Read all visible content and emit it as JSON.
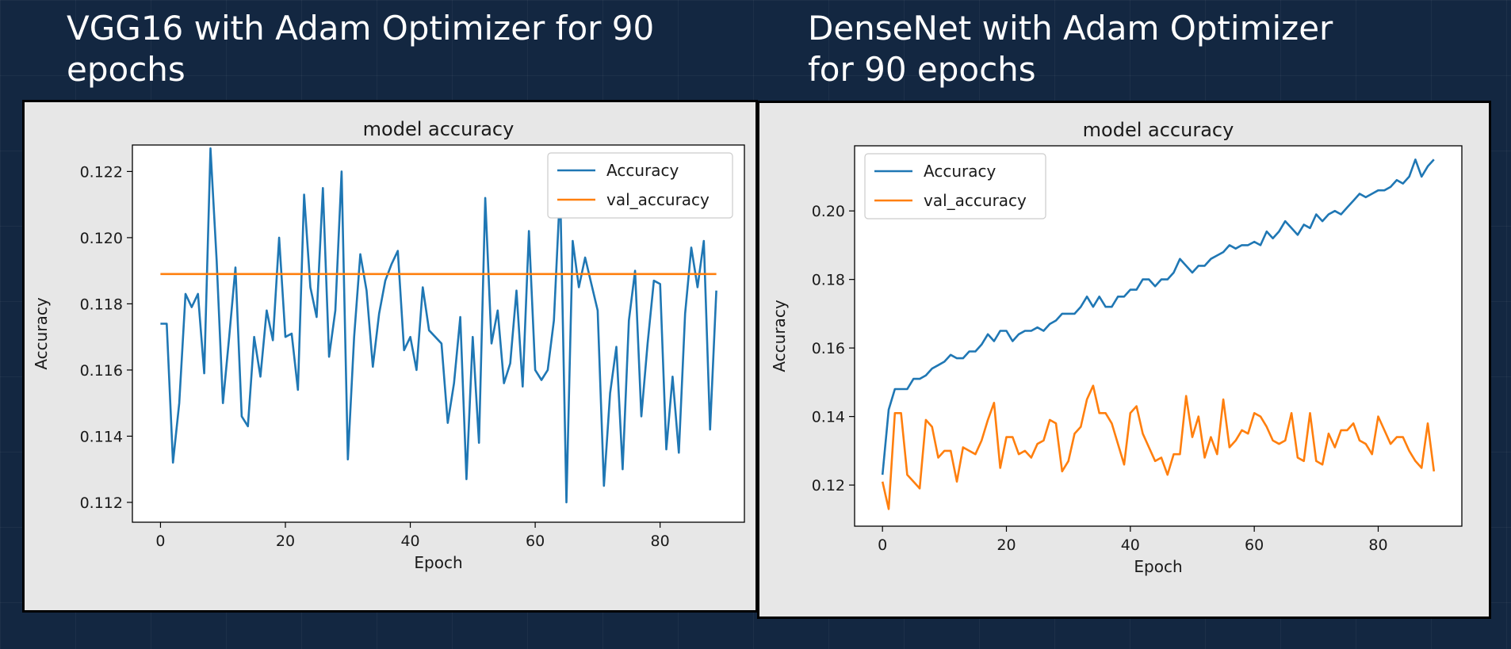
{
  "slide": {
    "left_title": "VGG16 with Adam Optimizer for 90 epochs",
    "right_title": "DenseNet with Adam Optimizer for 90 epochs"
  },
  "colors": {
    "background": "#132741",
    "accuracy": "#1f77b4",
    "val_accuracy": "#ff7f0e"
  },
  "chart_data": [
    {
      "type": "line",
      "title": "model accuracy",
      "xlabel": "Epoch",
      "ylabel": "Accuracy",
      "xlim": [
        -4.5,
        93.5
      ],
      "ylim": [
        0.1114,
        0.1228
      ],
      "xticks": [
        0,
        20,
        40,
        60,
        80
      ],
      "yticks": [
        0.112,
        0.114,
        0.116,
        0.118,
        0.12,
        0.122
      ],
      "ytick_labels": [
        "0.112",
        "0.114",
        "0.116",
        "0.118",
        "0.120",
        "0.122"
      ],
      "legend": "top-right",
      "series": [
        {
          "name": "Accuracy",
          "color": "#1f77b4",
          "x": [
            0,
            1,
            2,
            3,
            4,
            5,
            6,
            7,
            8,
            9,
            10,
            11,
            12,
            13,
            14,
            15,
            16,
            17,
            18,
            19,
            20,
            21,
            22,
            23,
            24,
            25,
            26,
            27,
            28,
            29,
            30,
            31,
            32,
            33,
            34,
            35,
            36,
            37,
            38,
            39,
            40,
            41,
            42,
            43,
            44,
            45,
            46,
            47,
            48,
            49,
            50,
            51,
            52,
            53,
            54,
            55,
            56,
            57,
            58,
            59,
            60,
            61,
            62,
            63,
            64,
            65,
            66,
            67,
            68,
            69,
            70,
            71,
            72,
            73,
            74,
            75,
            76,
            77,
            78,
            79,
            80,
            81,
            82,
            83,
            84,
            85,
            86,
            87,
            88,
            89
          ],
          "values": [
            0.1174,
            0.1174,
            0.1132,
            0.115,
            0.1183,
            0.1179,
            0.1183,
            0.1159,
            0.1227,
            0.1193,
            0.115,
            0.117,
            0.1191,
            0.1146,
            0.1143,
            0.117,
            0.1158,
            0.1178,
            0.1169,
            0.12,
            0.117,
            0.1171,
            0.1154,
            0.1213,
            0.1185,
            0.1176,
            0.1215,
            0.1164,
            0.1178,
            0.122,
            0.1133,
            0.117,
            0.1195,
            0.1184,
            0.1161,
            0.1177,
            0.1187,
            0.1192,
            0.1196,
            0.1166,
            0.117,
            0.116,
            0.1185,
            0.1172,
            0.117,
            0.1168,
            0.1144,
            0.1156,
            0.1176,
            0.1127,
            0.117,
            0.1138,
            0.1212,
            0.1168,
            0.1178,
            0.1156,
            0.1162,
            0.1184,
            0.1155,
            0.1202,
            0.116,
            0.1157,
            0.116,
            0.1175,
            0.1215,
            0.112,
            0.1199,
            0.1185,
            0.1194,
            0.1186,
            0.1178,
            0.1125,
            0.1153,
            0.1167,
            0.113,
            0.1175,
            0.119,
            0.1146,
            0.1168,
            0.1187,
            0.1186,
            0.1136,
            0.1158,
            0.1135,
            0.1177,
            0.1197,
            0.1185,
            0.1199,
            0.1142,
            0.1184
          ]
        },
        {
          "name": "val_accuracy",
          "color": "#ff7f0e",
          "x": [
            0,
            89
          ],
          "values": [
            0.1189,
            0.1189
          ]
        }
      ]
    },
    {
      "type": "line",
      "title": "model accuracy",
      "xlabel": "Epoch",
      "ylabel": "Accuracy",
      "xlim": [
        -4.5,
        93.5
      ],
      "ylim": [
        0.108,
        0.219
      ],
      "xticks": [
        0,
        20,
        40,
        60,
        80
      ],
      "yticks": [
        0.12,
        0.14,
        0.16,
        0.18,
        0.2
      ],
      "ytick_labels": [
        "0.12",
        "0.14",
        "0.16",
        "0.18",
        "0.20"
      ],
      "legend": "top-left",
      "series": [
        {
          "name": "Accuracy",
          "color": "#1f77b4",
          "x": [
            0,
            1,
            2,
            3,
            4,
            5,
            6,
            7,
            8,
            9,
            10,
            11,
            12,
            13,
            14,
            15,
            16,
            17,
            18,
            19,
            20,
            21,
            22,
            23,
            24,
            25,
            26,
            27,
            28,
            29,
            30,
            31,
            32,
            33,
            34,
            35,
            36,
            37,
            38,
            39,
            40,
            41,
            42,
            43,
            44,
            45,
            46,
            47,
            48,
            49,
            50,
            51,
            52,
            53,
            54,
            55,
            56,
            57,
            58,
            59,
            60,
            61,
            62,
            63,
            64,
            65,
            66,
            67,
            68,
            69,
            70,
            71,
            72,
            73,
            74,
            75,
            76,
            77,
            78,
            79,
            80,
            81,
            82,
            83,
            84,
            85,
            86,
            87,
            88,
            89
          ],
          "values": [
            0.123,
            0.142,
            0.148,
            0.148,
            0.148,
            0.151,
            0.151,
            0.152,
            0.154,
            0.155,
            0.156,
            0.158,
            0.157,
            0.157,
            0.159,
            0.159,
            0.161,
            0.164,
            0.162,
            0.165,
            0.165,
            0.162,
            0.164,
            0.165,
            0.165,
            0.166,
            0.165,
            0.167,
            0.168,
            0.17,
            0.17,
            0.17,
            0.172,
            0.175,
            0.172,
            0.175,
            0.172,
            0.172,
            0.175,
            0.175,
            0.177,
            0.177,
            0.18,
            0.18,
            0.178,
            0.18,
            0.18,
            0.182,
            0.186,
            0.184,
            0.182,
            0.184,
            0.184,
            0.186,
            0.187,
            0.188,
            0.19,
            0.189,
            0.19,
            0.19,
            0.191,
            0.19,
            0.194,
            0.192,
            0.194,
            0.197,
            0.195,
            0.193,
            0.196,
            0.195,
            0.199,
            0.197,
            0.199,
            0.2,
            0.199,
            0.201,
            0.203,
            0.205,
            0.204,
            0.205,
            0.206,
            0.206,
            0.207,
            0.209,
            0.208,
            0.21,
            0.215,
            0.21,
            0.213,
            0.215
          ]
        },
        {
          "name": "val_accuracy",
          "color": "#ff7f0e",
          "x": [
            0,
            1,
            2,
            3,
            4,
            5,
            6,
            7,
            8,
            9,
            10,
            11,
            12,
            13,
            14,
            15,
            16,
            17,
            18,
            19,
            20,
            21,
            22,
            23,
            24,
            25,
            26,
            27,
            28,
            29,
            30,
            31,
            32,
            33,
            34,
            35,
            36,
            37,
            38,
            39,
            40,
            41,
            42,
            43,
            44,
            45,
            46,
            47,
            48,
            49,
            50,
            51,
            52,
            53,
            54,
            55,
            56,
            57,
            58,
            59,
            60,
            61,
            62,
            63,
            64,
            65,
            66,
            67,
            68,
            69,
            70,
            71,
            72,
            73,
            74,
            75,
            76,
            77,
            78,
            79,
            80,
            81,
            82,
            83,
            84,
            85,
            86,
            87,
            88,
            89
          ],
          "values": [
            0.121,
            0.113,
            0.141,
            0.141,
            0.123,
            0.121,
            0.119,
            0.139,
            0.137,
            0.128,
            0.13,
            0.13,
            0.121,
            0.131,
            0.13,
            0.129,
            0.133,
            0.139,
            0.144,
            0.125,
            0.134,
            0.134,
            0.129,
            0.13,
            0.128,
            0.132,
            0.133,
            0.139,
            0.138,
            0.124,
            0.127,
            0.135,
            0.137,
            0.145,
            0.149,
            0.141,
            0.141,
            0.138,
            0.132,
            0.126,
            0.141,
            0.143,
            0.135,
            0.131,
            0.127,
            0.128,
            0.123,
            0.129,
            0.129,
            0.146,
            0.134,
            0.14,
            0.128,
            0.134,
            0.129,
            0.145,
            0.131,
            0.133,
            0.136,
            0.135,
            0.141,
            0.14,
            0.137,
            0.133,
            0.132,
            0.133,
            0.141,
            0.128,
            0.127,
            0.141,
            0.127,
            0.126,
            0.135,
            0.131,
            0.136,
            0.136,
            0.138,
            0.133,
            0.132,
            0.129,
            0.14,
            0.136,
            0.132,
            0.134,
            0.134,
            0.13,
            0.127,
            0.125,
            0.138,
            0.124
          ]
        }
      ]
    }
  ]
}
